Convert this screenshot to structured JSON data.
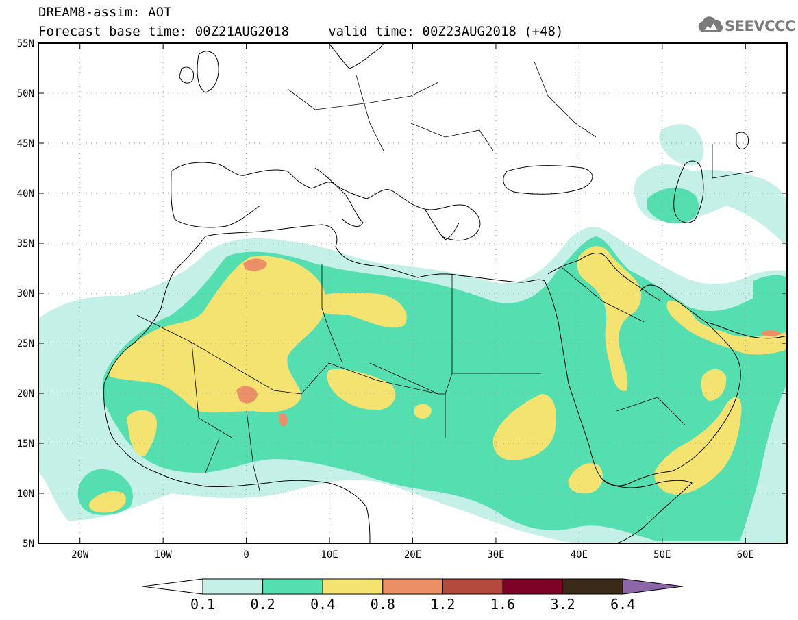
{
  "header": {
    "title_line1": "DREAM8-assim: AOT",
    "title_line2": "Forecast base time: 00Z21AUG2018     valid time: 00Z23AUG2018 (+48)",
    "logo_text": "SEEVCCC",
    "logo_icon": "cloud-icon"
  },
  "map": {
    "lon_range": [
      -25,
      65
    ],
    "lat_range": [
      5,
      55
    ],
    "lon_tick_labels": [
      "20W",
      "10W",
      "0",
      "10E",
      "20E",
      "30E",
      "40E",
      "50E",
      "60E"
    ],
    "lon_tick_values": [
      -20,
      -10,
      0,
      10,
      20,
      30,
      40,
      50,
      60
    ],
    "lat_tick_labels": [
      "55N",
      "50N",
      "45N",
      "40N",
      "35N",
      "30N",
      "25N",
      "20N",
      "15N",
      "10N",
      "5N"
    ],
    "lat_tick_values": [
      55,
      50,
      45,
      40,
      35,
      30,
      25,
      20,
      15,
      10,
      5
    ],
    "gridlines": "dotted"
  },
  "colorbar": {
    "labels": [
      "0.1",
      "0.2",
      "0.4",
      "0.8",
      "1.2",
      "1.6",
      "3.2",
      "6.4"
    ],
    "colors": [
      "#ffffff",
      "#c4f0e8",
      "#55dfb1",
      "#f5e371",
      "#eb8f66",
      "#b34a3d",
      "#7d0026",
      "#3b2a19",
      "#8c67a8"
    ]
  }
}
